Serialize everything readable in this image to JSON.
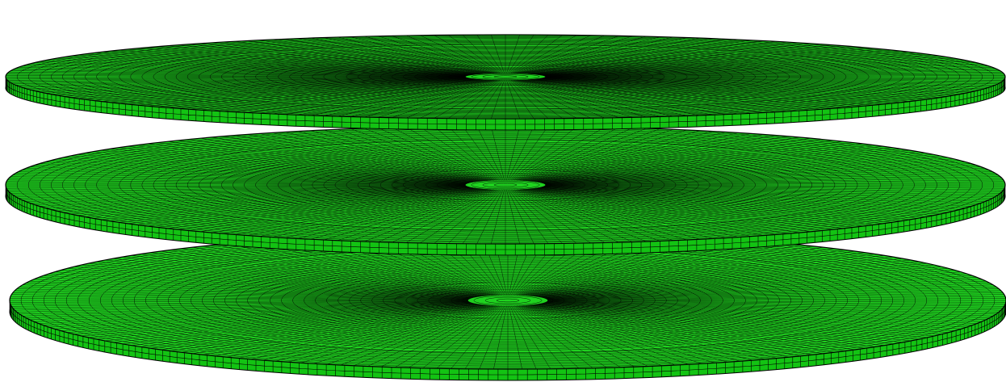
{
  "scene": {
    "background": "#ffffff",
    "mesh_fill_top": "#1fd21f",
    "mesh_fill_rim": "#13c313",
    "mesh_line": "#000000",
    "element_type": "hexahedral-mesh",
    "plates": [
      {
        "name": "plate-top",
        "rings": 44,
        "sectors": 220
      },
      {
        "name": "plate-middle",
        "rings": 44,
        "sectors": 220
      },
      {
        "name": "plate-bottom",
        "rings": 44,
        "sectors": 220
      }
    ]
  }
}
